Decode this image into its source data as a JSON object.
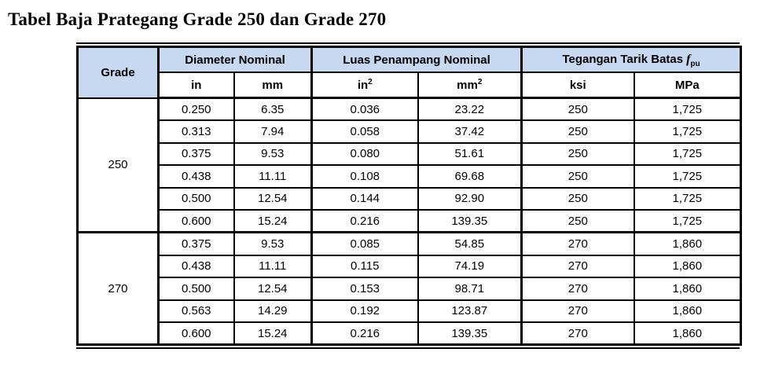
{
  "title": "Tabel Baja Prategang Grade 250 dan Grade 270",
  "colors": {
    "header_bg": "#C6D9F1",
    "border": "#000000",
    "text": "#000000",
    "page_bg": "#FFFFFF"
  },
  "table": {
    "header": {
      "grade": "Grade",
      "sections": {
        "diameter": "Diameter Nominal",
        "luas": "Luas Penampang Nominal",
        "tegangan_prefix": "Tegangan Tarik Batas",
        "tegangan_symbol": "f",
        "tegangan_subscript": "pu"
      },
      "units": {
        "in": "in",
        "mm": "mm",
        "in2_base": "in",
        "in2_sup": "2",
        "mm2_base": "mm",
        "mm2_sup": "2",
        "ksi": "ksi",
        "mpa": "MPa"
      }
    },
    "groups": [
      {
        "grade": "250",
        "rows": [
          [
            "0.250",
            "6.35",
            "0.036",
            "23.22",
            "250",
            "1,725"
          ],
          [
            "0.313",
            "7.94",
            "0.058",
            "37.42",
            "250",
            "1,725"
          ],
          [
            "0.375",
            "9.53",
            "0.080",
            "51.61",
            "250",
            "1,725"
          ],
          [
            "0.438",
            "11.11",
            "0.108",
            "69.68",
            "250",
            "1,725"
          ],
          [
            "0.500",
            "12.54",
            "0.144",
            "92.90",
            "250",
            "1,725"
          ],
          [
            "0.600",
            "15.24",
            "0.216",
            "139.35",
            "250",
            "1,725"
          ]
        ]
      },
      {
        "grade": "270",
        "rows": [
          [
            "0.375",
            "9.53",
            "0.085",
            "54.85",
            "270",
            "1,860"
          ],
          [
            "0.438",
            "11.11",
            "0.115",
            "74.19",
            "270",
            "1,860"
          ],
          [
            "0.500",
            "12.54",
            "0.153",
            "98.71",
            "270",
            "1,860"
          ],
          [
            "0.563",
            "14.29",
            "0.192",
            "123.87",
            "270",
            "1,860"
          ],
          [
            "0.600",
            "15.24",
            "0.216",
            "139.35",
            "270",
            "1,860"
          ]
        ]
      }
    ]
  }
}
